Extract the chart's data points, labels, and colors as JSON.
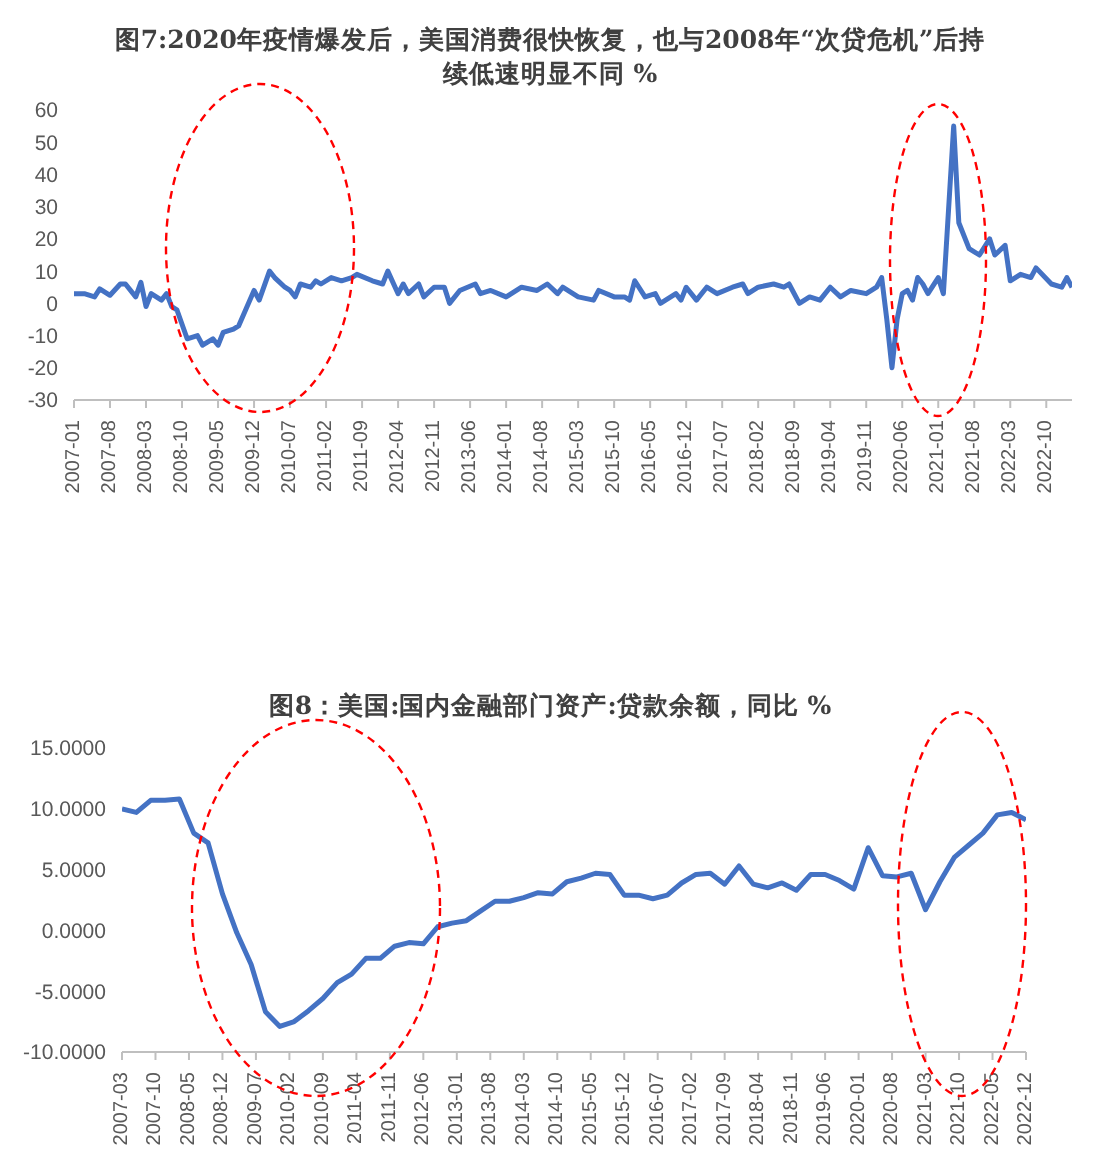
{
  "chart_data": [
    {
      "type": "line",
      "title": "图7:2020年疫情爆发后，美国消费很快恢复，也与2008年“次贷危机”后持续低速明显不同 %",
      "x": [
        "2007-01",
        "2007-03",
        "2007-05",
        "2007-06",
        "2007-08",
        "2007-10",
        "2007-11",
        "2008-01",
        "2008-02",
        "2008-03",
        "2008-04",
        "2008-06",
        "2008-07",
        "2008-08",
        "2008-09",
        "2008-11",
        "2009-01",
        "2009-02",
        "2009-04",
        "2009-05",
        "2009-06",
        "2009-08",
        "2009-09",
        "2009-12",
        "2010-01",
        "2010-03",
        "2010-04",
        "2010-06",
        "2010-07",
        "2010-08",
        "2010-09",
        "2010-11",
        "2010-12",
        "2011-01",
        "2011-03",
        "2011-05",
        "2011-07",
        "2011-08",
        "2011-11",
        "2012-01",
        "2012-02",
        "2012-04",
        "2012-05",
        "2012-06",
        "2012-08",
        "2012-09",
        "2012-11",
        "2013-01",
        "2013-02",
        "2013-04",
        "2013-07",
        "2013-08",
        "2013-10",
        "2014-01",
        "2014-04",
        "2014-07",
        "2014-09",
        "2014-11",
        "2014-12",
        "2015-03",
        "2015-06",
        "2015-07",
        "2015-10",
        "2015-12",
        "2016-01",
        "2016-02",
        "2016-04",
        "2016-06",
        "2016-07",
        "2016-10",
        "2016-11",
        "2016-12",
        "2017-02",
        "2017-04",
        "2017-06",
        "2017-09",
        "2017-11",
        "2017-12",
        "2018-02",
        "2018-05",
        "2018-07",
        "2018-08",
        "2018-10",
        "2018-12",
        "2019-02",
        "2019-04",
        "2019-06",
        "2019-08",
        "2019-11",
        "2020-01",
        "2020-02",
        "2020-03",
        "2020-04",
        "2020-05",
        "2020-06",
        "2020-07",
        "2020-08",
        "2020-09",
        "2020-10",
        "2020-11",
        "2021-01",
        "2021-02",
        "2021-04",
        "2021-05",
        "2021-07",
        "2021-09",
        "2021-11",
        "2021-12",
        "2022-02",
        "2022-03",
        "2022-05",
        "2022-07",
        "2022-08",
        "2022-11",
        "2023-01",
        "2023-02",
        "2023-03"
      ],
      "series": [
        {
          "color": "#4472c4",
          "values": [
            3,
            3,
            2,
            4.5,
            2.5,
            6,
            6,
            2,
            6.5,
            -1,
            3,
            1,
            3,
            -1,
            -2,
            -11,
            -10,
            -13,
            -11,
            -13,
            -9,
            -8,
            -7,
            4,
            1,
            10,
            8,
            5,
            4,
            2,
            6,
            5,
            7,
            6,
            8,
            7,
            8,
            9,
            7,
            6,
            10,
            3,
            6,
            3,
            6,
            2,
            5,
            5,
            0,
            4,
            6,
            3,
            4,
            2,
            5,
            4,
            6,
            3,
            5,
            2,
            1,
            4,
            2,
            2,
            1,
            7,
            2,
            3,
            0,
            3,
            1,
            5,
            1,
            5,
            3,
            5,
            6,
            3,
            5,
            6,
            5,
            6,
            0,
            2,
            1,
            5,
            2,
            4,
            3,
            5,
            8,
            -5,
            -20,
            -5,
            3,
            4,
            1,
            8,
            6,
            3,
            8,
            3,
            55,
            25,
            17,
            15,
            20,
            15,
            18,
            7,
            9,
            8,
            11,
            6,
            5,
            8,
            5
          ]
        }
      ],
      "xlim": [
        "2007-01",
        "2023-03"
      ],
      "xticks": [
        "2007-01",
        "2007-08",
        "2008-03",
        "2008-10",
        "2009-05",
        "2009-12",
        "2010-07",
        "2011-02",
        "2011-09",
        "2012-04",
        "2012-11",
        "2013-06",
        "2014-01",
        "2014-08",
        "2015-03",
        "2015-10",
        "2016-05",
        "2016-12",
        "2017-07",
        "2018-02",
        "2018-09",
        "2019-04",
        "2019-11",
        "2020-06",
        "2021-01",
        "2021-08",
        "2022-03",
        "2022-10"
      ],
      "ylim": [
        -30,
        60
      ],
      "yticks": [
        -30,
        -20,
        -10,
        0,
        10,
        20,
        30,
        40,
        50,
        60
      ]
    },
    {
      "type": "line",
      "title": "图8：美国:国内金融部门资产:贷款余额，同比 %",
      "x": [
        "2007-03",
        "2007-06",
        "2007-09",
        "2007-12",
        "2008-03",
        "2008-06",
        "2008-09",
        "2008-12",
        "2009-03",
        "2009-06",
        "2009-09",
        "2009-12",
        "2010-03",
        "2010-06",
        "2010-09",
        "2010-12",
        "2011-03",
        "2011-06",
        "2011-09",
        "2011-12",
        "2012-03",
        "2012-06",
        "2012-09",
        "2012-12",
        "2013-03",
        "2013-06",
        "2013-09",
        "2013-12",
        "2014-03",
        "2014-06",
        "2014-09",
        "2014-12",
        "2015-03",
        "2015-06",
        "2015-09",
        "2015-12",
        "2016-03",
        "2016-06",
        "2016-09",
        "2016-12",
        "2017-03",
        "2017-06",
        "2017-09",
        "2017-12",
        "2018-03",
        "2018-06",
        "2018-09",
        "2018-12",
        "2019-03",
        "2019-06",
        "2019-09",
        "2019-12",
        "2020-03",
        "2020-06",
        "2020-09",
        "2020-12",
        "2021-03",
        "2021-06",
        "2021-09",
        "2021-12",
        "2022-03",
        "2022-06",
        "2022-09",
        "2022-12"
      ],
      "series": [
        {
          "color": "#4472c4",
          "values": [
            10.0,
            9.7,
            10.7,
            10.7,
            10.8,
            8.0,
            7.2,
            3.0,
            -0.2,
            -2.8,
            -6.7,
            -7.9,
            -7.5,
            -6.6,
            -5.6,
            -4.3,
            -3.6,
            -2.3,
            -2.3,
            -1.3,
            -1.0,
            -1.1,
            0.3,
            0.6,
            0.8,
            1.6,
            2.4,
            2.4,
            2.7,
            3.1,
            3.0,
            4.0,
            4.3,
            4.7,
            4.6,
            2.9,
            2.9,
            2.6,
            2.9,
            3.9,
            4.6,
            4.7,
            3.8,
            5.3,
            3.8,
            3.5,
            3.9,
            3.3,
            4.6,
            4.6,
            4.1,
            3.4,
            6.8,
            4.5,
            4.4,
            4.7,
            1.7,
            4.0,
            6.0,
            7.0,
            8.0,
            9.5,
            9.7,
            9.1
          ]
        }
      ],
      "xlim": [
        "2007-03",
        "2022-12"
      ],
      "xticks": [
        "2007-03",
        "2007-10",
        "2008-05",
        "2008-12",
        "2009-07",
        "2010-02",
        "2010-09",
        "2011-04",
        "2011-11",
        "2012-06",
        "2013-01",
        "2013-08",
        "2014-03",
        "2014-10",
        "2015-05",
        "2015-12",
        "2016-07",
        "2017-02",
        "2017-09",
        "2018-04",
        "2018-11",
        "2019-06",
        "2020-01",
        "2020-08",
        "2021-03",
        "2021-10",
        "2022-05",
        "2022-12"
      ],
      "ylim": [
        -10,
        15
      ],
      "yticks": [
        {
          "value": -10,
          "label": "-10.0000"
        },
        {
          "value": -5,
          "label": "-5.0000"
        },
        {
          "value": 0,
          "label": "0.0000"
        },
        {
          "value": 5,
          "label": "5.0000"
        },
        {
          "value": 10,
          "label": "10.0000"
        },
        {
          "value": 15,
          "label": "15.0000"
        }
      ]
    }
  ]
}
